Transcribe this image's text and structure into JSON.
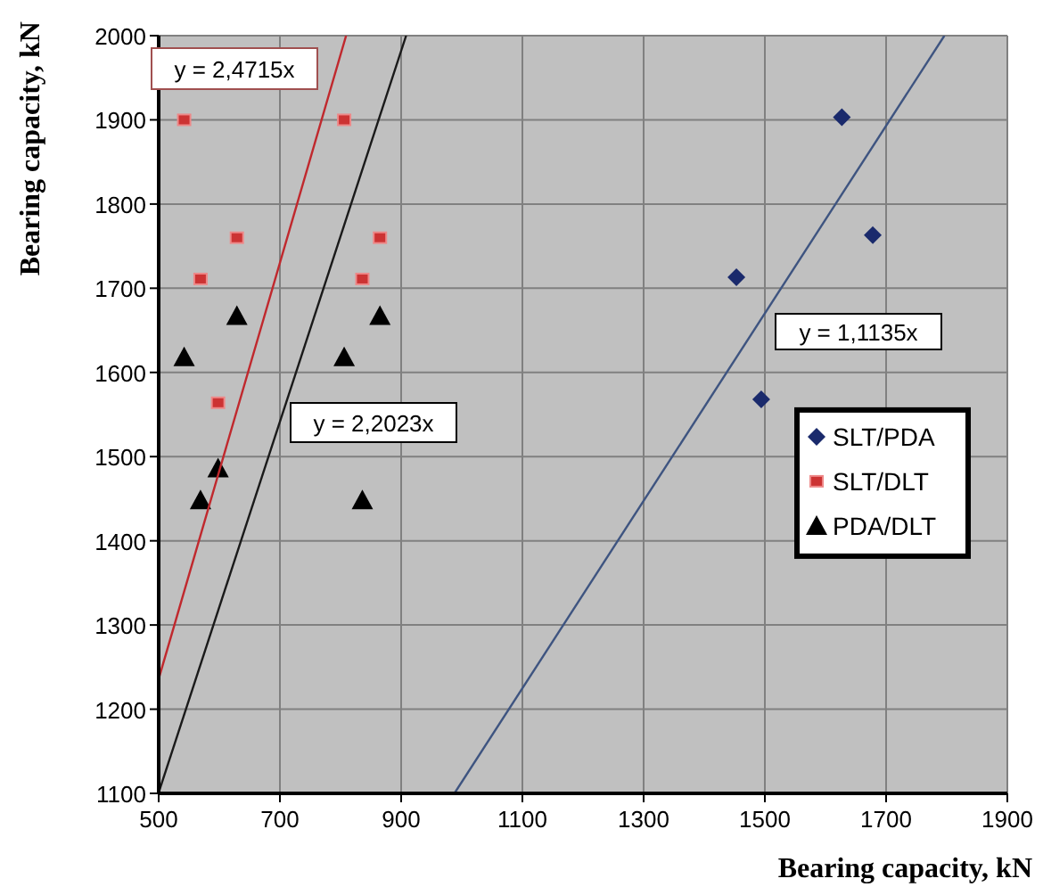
{
  "chart_data": {
    "type": "scatter",
    "xlabel": "Bearing capacity, kN",
    "ylabel": "Bearing capacity, kN",
    "xlim": [
      500,
      1900
    ],
    "ylim": [
      1100,
      2000
    ],
    "xticks": [
      500,
      700,
      900,
      1100,
      1300,
      1500,
      1700,
      1900
    ],
    "yticks": [
      1100,
      1200,
      1300,
      1400,
      1500,
      1600,
      1700,
      1800,
      1900,
      2000
    ],
    "grid": true,
    "legend": "right",
    "series": [
      {
        "name": "SLT/PDA",
        "color": "#1a2a6c",
        "marker": "diamond",
        "x": [
          1627,
          1678,
          1453,
          1494
        ],
        "values": [
          1903,
          1763,
          1713,
          1568
        ]
      },
      {
        "name": "SLT/DLT",
        "color": "#cc3333",
        "marker": "square",
        "x": [
          542,
          806,
          629,
          569,
          865,
          836,
          598
        ],
        "values": [
          1900,
          1900,
          1760,
          1711,
          1760,
          1711,
          1564
        ]
      },
      {
        "name": "PDA/DLT",
        "color": "#000000",
        "marker": "triangle",
        "x": [
          629,
          542,
          806,
          865,
          598,
          569,
          836
        ],
        "values": [
          1667,
          1618,
          1618,
          1667,
          1486,
          1448,
          1448
        ]
      },
      {
        "type": "line",
        "color": "#c0282d",
        "marker": "none",
        "x": [
          500,
          809.2
        ],
        "values": [
          1236,
          2000
        ]
      },
      {
        "type": "line",
        "color": "#1a1a1a",
        "marker": "none",
        "x": [
          500,
          908.2
        ],
        "values": [
          1101,
          2000
        ]
      },
      {
        "type": "line",
        "color": "#3e5480",
        "marker": "none",
        "x": [
          987.9,
          1796.2
        ],
        "values": [
          1100,
          2000
        ]
      }
    ],
    "annotations": [
      "y = 2,4715x",
      "y = 2,2023x",
      "y = 1,1135x"
    ]
  }
}
